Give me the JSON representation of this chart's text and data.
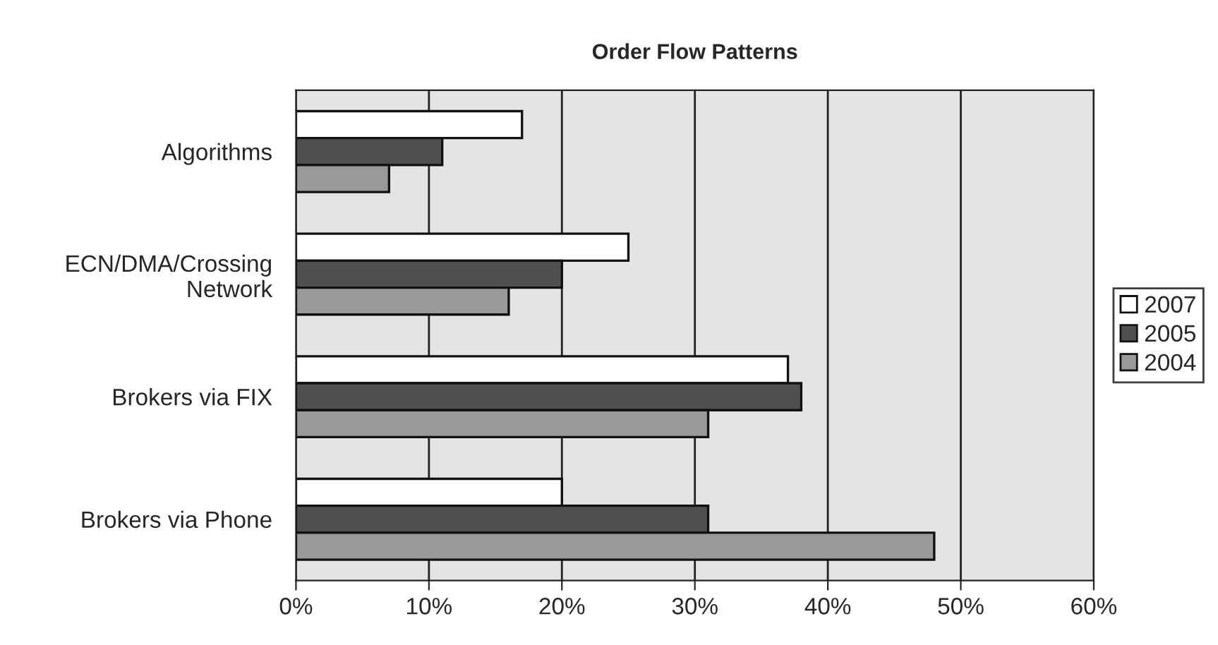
{
  "chart_data": {
    "type": "bar",
    "orientation": "horizontal",
    "title": "Order Flow Patterns",
    "categories": [
      "Algorithms",
      "ECN/DMA/Crossing\nNetwork",
      "Brokers via FIX",
      "Brokers via Phone"
    ],
    "series": [
      {
        "name": "2007",
        "color": "#ffffff",
        "values": [
          17,
          25,
          37,
          20
        ]
      },
      {
        "name": "2005",
        "color": "#505050",
        "values": [
          11,
          20,
          38,
          31
        ]
      },
      {
        "name": "2004",
        "color": "#999999",
        "values": [
          7,
          16,
          31,
          48
        ]
      }
    ],
    "xlim": [
      0,
      60
    ],
    "xticks": [
      {
        "value": 0,
        "label": "0%"
      },
      {
        "value": 10,
        "label": "10%"
      },
      {
        "value": 20,
        "label": "20%"
      },
      {
        "value": 30,
        "label": "30%"
      },
      {
        "value": 40,
        "label": "40%"
      },
      {
        "value": 50,
        "label": "50%"
      },
      {
        "value": 60,
        "label": "60%"
      }
    ],
    "grid": "x",
    "legend": "right"
  }
}
